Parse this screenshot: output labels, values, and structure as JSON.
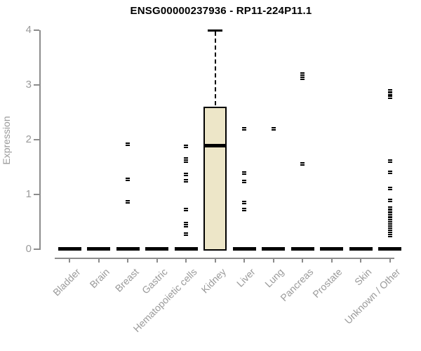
{
  "title": "ENSG00000237936 - RP11-224P11.1",
  "y_axis_label": "Expression",
  "chart_data": {
    "type": "boxplot",
    "title": "ENSG00000237936 - RP11-224P11.1",
    "xlabel": "",
    "ylabel": "Expression",
    "ylim": [
      0,
      4
    ],
    "y_ticks": [
      0,
      1,
      2,
      3,
      4
    ],
    "grid": false,
    "legend": false,
    "categories": [
      "Bladder",
      "Brain",
      "Breast",
      "Gastric",
      "Hematopoietic cells",
      "Kidney",
      "Liver",
      "Lung",
      "Pancreas",
      "Prostate",
      "Skin",
      "Unknown / Other"
    ],
    "boxes": [
      {
        "category": "Bladder",
        "q1": 0,
        "median": 0,
        "q3": 0,
        "whisker_low": 0,
        "whisker_high": 0,
        "points": []
      },
      {
        "category": "Brain",
        "q1": 0,
        "median": 0,
        "q3": 0,
        "whisker_low": 0,
        "whisker_high": 0,
        "points": []
      },
      {
        "category": "Breast",
        "q1": 0,
        "median": 0,
        "q3": 0,
        "whisker_low": 0,
        "whisker_high": 0,
        "points": [
          1.92,
          1.28,
          0.87
        ]
      },
      {
        "category": "Gastric",
        "q1": 0,
        "median": 0,
        "q3": 0,
        "whisker_low": 0,
        "whisker_high": 0,
        "points": []
      },
      {
        "category": "Hematopoietic cells",
        "q1": 0,
        "median": 0,
        "q3": 0,
        "whisker_low": 0,
        "whisker_high": 0,
        "points": [
          1.88,
          1.66,
          1.61,
          1.37,
          1.26,
          0.73,
          0.47,
          0.44,
          0.28
        ]
      },
      {
        "category": "Kidney",
        "q1": 0,
        "median": 1.9,
        "q3": 2.6,
        "whisker_low": 0,
        "whisker_high": 4.0,
        "points": []
      },
      {
        "category": "Liver",
        "q1": 0,
        "median": 0,
        "q3": 0,
        "whisker_low": 0,
        "whisker_high": 0,
        "points": [
          2.21,
          1.4,
          1.24,
          0.86,
          0.73
        ]
      },
      {
        "category": "Lung",
        "q1": 0,
        "median": 0,
        "q3": 0,
        "whisker_low": 0,
        "whisker_high": 0,
        "points": [
          2.21
        ]
      },
      {
        "category": "Pancreas",
        "q1": 0,
        "median": 0,
        "q3": 0,
        "whisker_low": 0,
        "whisker_high": 0,
        "points": [
          3.21,
          3.13,
          1.56
        ]
      },
      {
        "category": "Prostate",
        "q1": 0,
        "median": 0,
        "q3": 0,
        "whisker_low": 0,
        "whisker_high": 0,
        "points": []
      },
      {
        "category": "Skin",
        "q1": 0,
        "median": 0,
        "q3": 0,
        "whisker_low": 0,
        "whisker_high": 0,
        "points": []
      },
      {
        "category": "Unknown / Other",
        "q1": 0,
        "median": 0,
        "q3": 0,
        "whisker_low": 0,
        "whisker_high": 0,
        "points": [
          2.9,
          2.84,
          2.78,
          1.62,
          1.41,
          1.11,
          0.9,
          0.76,
          0.7,
          0.66,
          0.62,
          0.57,
          0.53,
          0.49,
          0.45,
          0.41,
          0.37,
          0.33,
          0.29,
          0.26
        ]
      }
    ],
    "colors": {
      "box_fill": "#ede6c8",
      "box_border": "#000000",
      "point": "#000000",
      "axis": "#8c8c8c",
      "axis_text": "#9a9a9a",
      "title_text": "#000000"
    }
  }
}
